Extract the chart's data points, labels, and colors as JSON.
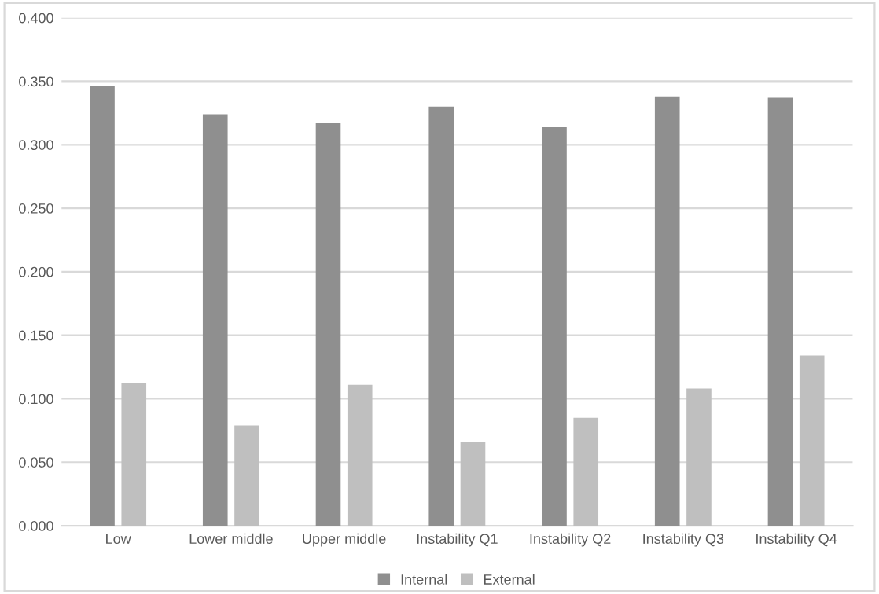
{
  "chart_data": {
    "type": "bar",
    "categories": [
      "Low",
      "Lower middle",
      "Upper middle",
      "Instability Q1",
      "Instability Q2",
      "Instability Q3",
      "Instability Q4"
    ],
    "series": [
      {
        "name": "Internal",
        "color": "#8f8f8f",
        "values": [
          0.346,
          0.324,
          0.317,
          0.33,
          0.314,
          0.338,
          0.337
        ]
      },
      {
        "name": "External",
        "color": "#bfbfbf",
        "values": [
          0.112,
          0.079,
          0.111,
          0.066,
          0.085,
          0.108,
          0.134
        ]
      }
    ],
    "ylim": [
      0,
      0.4
    ],
    "yticks": [
      {
        "value": 0,
        "label": "0.000"
      },
      {
        "value": 0.05,
        "label": "0.050"
      },
      {
        "value": 0.1,
        "label": "0.100"
      },
      {
        "value": 0.15,
        "label": "0.150"
      },
      {
        "value": 0.2,
        "label": "0.200"
      },
      {
        "value": 0.25,
        "label": "0.250"
      },
      {
        "value": 0.3,
        "label": "0.300"
      },
      {
        "value": 0.35,
        "label": "0.350"
      },
      {
        "value": 0.4,
        "label": "0.400"
      }
    ],
    "grid": "y",
    "legend": "bottom"
  }
}
